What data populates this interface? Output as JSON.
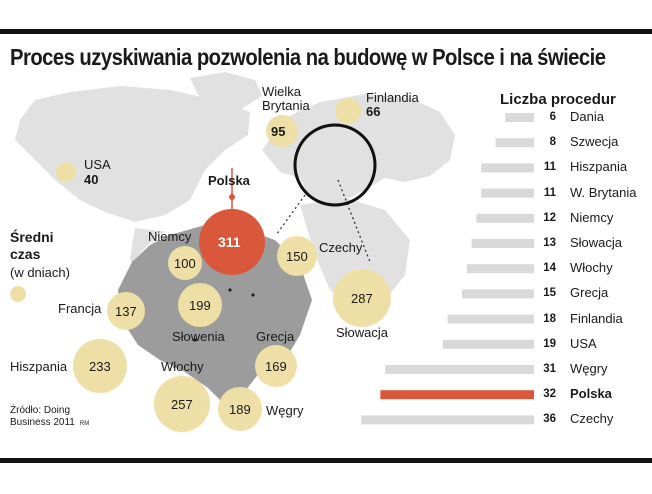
{
  "title": "Proces uzyskiwania pozwolenia na budowę w Polsce i na świecie",
  "legend": {
    "title_line1": "Średni",
    "title_line2": "czas",
    "subtitle": "(w dniach)"
  },
  "source": {
    "line1": "Źródło: Doing",
    "line2": "Business 2011",
    "mark": "RM"
  },
  "colors": {
    "bubble": "#eddfa6",
    "highlight": "#d9573a",
    "bar": "#d9d9d9",
    "map": "#e1e1e1",
    "zoom_map": "#9c9c9c",
    "zoom_bg": "#ffffff"
  },
  "map_labels": {
    "usa": "USA",
    "usa_val": "40",
    "uk_line1": "Wielka",
    "uk_line2": "Brytania",
    "uk_val": "95",
    "finland": "Finlandia",
    "finland_val": "66",
    "poland": "Polska",
    "poland_val": "311",
    "germany": "Niemcy",
    "germany_val": "100",
    "czech": "Czechy",
    "czech_val": "150",
    "france": "Francja",
    "france_val": "137",
    "slovenia": "Słowenia",
    "slovenia_val": "199",
    "slovakia": "Słowacja",
    "slovakia_val": "287",
    "greece": "Grecja",
    "greece_val": "169",
    "spain": "Hiszpania",
    "spain_val": "233",
    "italy": "Włochy",
    "italy_val": "257",
    "hungary": "Węgry",
    "hungary_val": "189"
  },
  "procedures_title": "Liczba procedur",
  "chart_data": [
    {
      "type": "scatter",
      "title": "Proces uzyskiwania pozwolenia na budowę w Polsce i na świecie",
      "legend": "Średni czas (w dniach)",
      "categories": [
        "USA",
        "Finlandia",
        "Wielka Brytania",
        "Polska",
        "Niemcy",
        "Czechy",
        "Francja",
        "Słowenia",
        "Słowacja",
        "Grecja",
        "Hiszpania",
        "Włochy",
        "Węgry"
      ],
      "values": [
        40,
        66,
        95,
        311,
        100,
        150,
        137,
        199,
        287,
        169,
        233,
        257,
        189
      ],
      "highlight": "Polska"
    },
    {
      "type": "bar",
      "title": "Liczba procedur",
      "categories": [
        "Dania",
        "Szwecja",
        "Hiszpania",
        "W. Brytania",
        "Niemcy",
        "Słowacja",
        "Włochy",
        "Grecja",
        "Finlandia",
        "USA",
        "Węgry",
        "Polska",
        "Czechy"
      ],
      "values": [
        6,
        8,
        11,
        11,
        12,
        13,
        14,
        15,
        18,
        19,
        31,
        32,
        36
      ],
      "highlight": "Polska"
    }
  ]
}
